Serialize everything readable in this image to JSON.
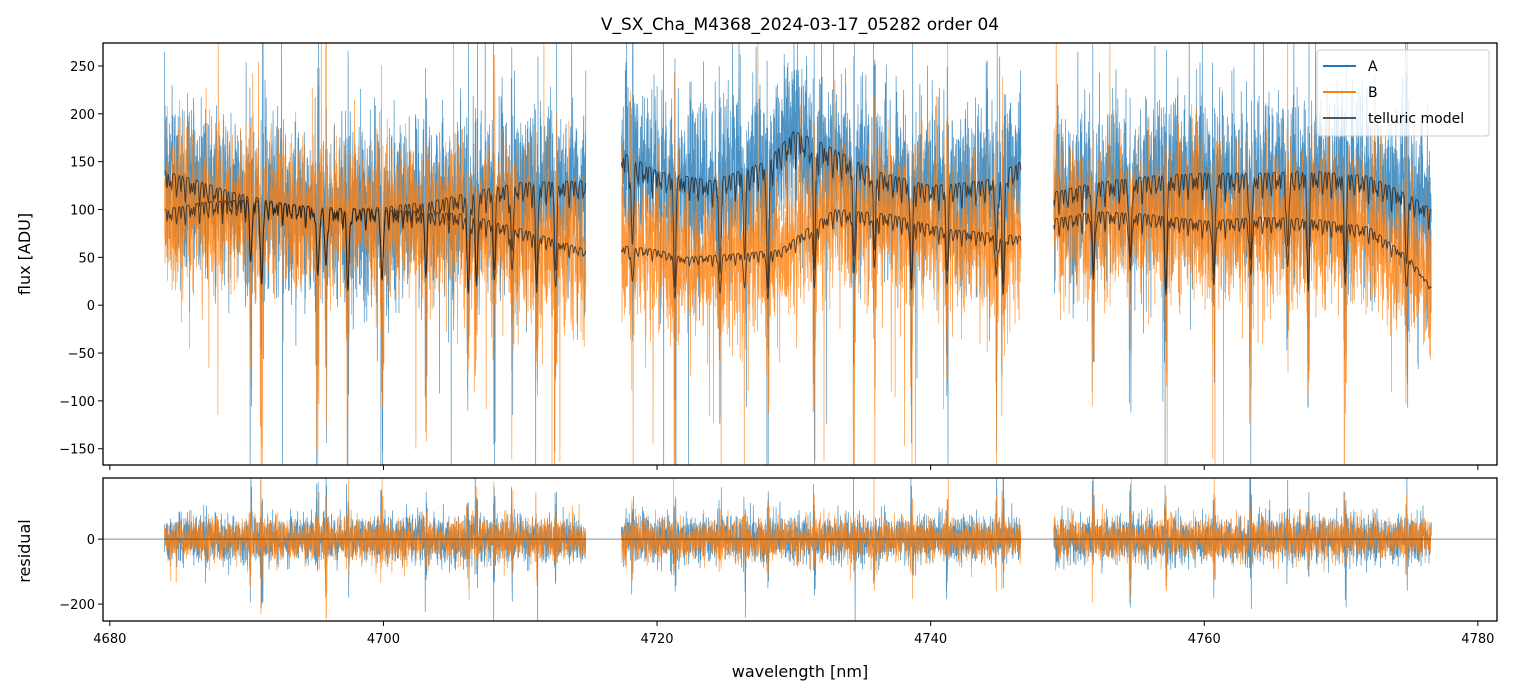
{
  "chart_data": {
    "type": "line",
    "title": "V_SX_Cha_M4368_2024-03-17_05282  order 04",
    "xlabel": "wavelength [nm]",
    "top_panel": {
      "ylabel": "flux [ADU]",
      "ylim": [
        -167,
        274
      ],
      "yticks": [
        -150,
        -100,
        -50,
        0,
        50,
        100,
        150,
        200,
        250
      ]
    },
    "bottom_panel": {
      "ylabel": "residual",
      "ylim": [
        -252,
        188
      ],
      "yticks": [
        -200,
        0
      ],
      "zero_line": true
    },
    "xlim": [
      4679.5,
      4781.4
    ],
    "xticks": [
      4680,
      4700,
      4720,
      4740,
      4760,
      4780
    ],
    "legend": {
      "placement": "top-right",
      "entries": [
        "A",
        "B",
        "telluric model"
      ]
    },
    "colors": {
      "A": "#1f77b4",
      "B": "#ff7f0e",
      "telluric": "#222222"
    },
    "segments": [
      {
        "range": [
          4684.0,
          4714.8
        ],
        "model_A": [
          [
            4684,
            140
          ],
          [
            4686,
            132
          ],
          [
            4689,
            118
          ],
          [
            4692,
            108
          ],
          [
            4696,
            100
          ],
          [
            4700,
            102
          ],
          [
            4704,
            110
          ],
          [
            4707,
            120
          ],
          [
            4710,
            128
          ],
          [
            4714.8,
            130
          ]
        ],
        "model_B": [
          [
            4684,
            100
          ],
          [
            4687,
            108
          ],
          [
            4690,
            110
          ],
          [
            4694,
            104
          ],
          [
            4698,
            100
          ],
          [
            4702,
            98
          ],
          [
            4706,
            95
          ],
          [
            4710,
            80
          ],
          [
            4714.8,
            58
          ]
        ]
      },
      {
        "range": [
          4717.4,
          4746.6
        ],
        "model_A": [
          [
            4717.4,
            160
          ],
          [
            4720,
            140
          ],
          [
            4724,
            130
          ],
          [
            4728,
            150
          ],
          [
            4730,
            182
          ],
          [
            4732,
            170
          ],
          [
            4736,
            140
          ],
          [
            4740,
            125
          ],
          [
            4744,
            130
          ],
          [
            4746.6,
            150
          ]
        ],
        "model_B": [
          [
            4717.4,
            62
          ],
          [
            4720,
            58
          ],
          [
            4722,
            50
          ],
          [
            4726,
            54
          ],
          [
            4729,
            58
          ],
          [
            4731,
            80
          ],
          [
            4733,
            100
          ],
          [
            4737,
            95
          ],
          [
            4741,
            80
          ],
          [
            4746.6,
            72
          ]
        ]
      },
      {
        "range": [
          4749.0,
          4776.6
        ],
        "model_A": [
          [
            4749,
            118
          ],
          [
            4752,
            128
          ],
          [
            4756,
            135
          ],
          [
            4760,
            138
          ],
          [
            4764,
            138
          ],
          [
            4768,
            140
          ],
          [
            4772,
            135
          ],
          [
            4775,
            115
          ],
          [
            4776.6,
            100
          ]
        ],
        "model_B": [
          [
            4749,
            90
          ],
          [
            4752,
            98
          ],
          [
            4756,
            95
          ],
          [
            4760,
            88
          ],
          [
            4764,
            92
          ],
          [
            4768,
            90
          ],
          [
            4772,
            82
          ],
          [
            4775,
            50
          ],
          [
            4776.6,
            18
          ]
        ]
      }
    ],
    "absorption_lines_nm": [
      4690.3,
      4691.1,
      4695.2,
      4695.8,
      4697.4,
      4699.9,
      4703.1,
      4706.2,
      4706.8,
      4708.1,
      4709.4,
      4711.2,
      4712.6,
      4718.2,
      4721.3,
      4724.6,
      4726.4,
      4728.1,
      4731.5,
      4734.4,
      4735.9,
      4738.6,
      4741.2,
      4744.8,
      4745.3,
      4751.9,
      4754.6,
      4757.2,
      4760.7,
      4763.4,
      4766.1,
      4767.6,
      4770.3,
      4774.8
    ],
    "noise_sigma": {
      "A": 45,
      "B": 40,
      "residual": 32
    }
  }
}
